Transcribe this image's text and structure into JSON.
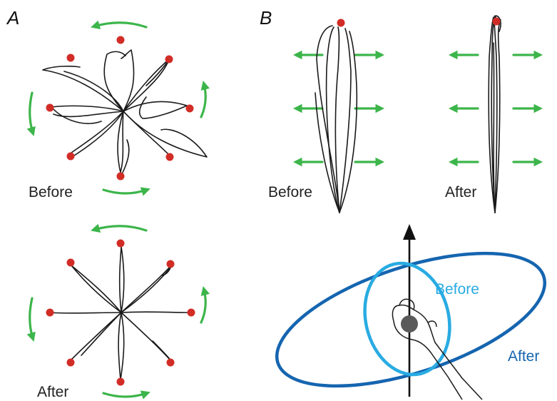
{
  "panels": {
    "a": {
      "letter": "A",
      "before_label": "Before",
      "after_label": "After"
    },
    "b": {
      "letter": "B",
      "before_label": "Before",
      "after_label": "After"
    },
    "ellipses": {
      "before_label": "Before",
      "after_label": "After"
    }
  },
  "colors": {
    "target": "#d12d26",
    "force_arrow": "#3cb54a",
    "trajectory": "#1a1a1a",
    "before_ellipse": "#29abe2",
    "after_ellipse": "#1565b0",
    "hand_marker": "#5a5a5a"
  },
  "icons": {
    "target": "red-dot",
    "force": "green-arrow",
    "direction": "black-arrow-up",
    "hand": "hand-outline"
  }
}
